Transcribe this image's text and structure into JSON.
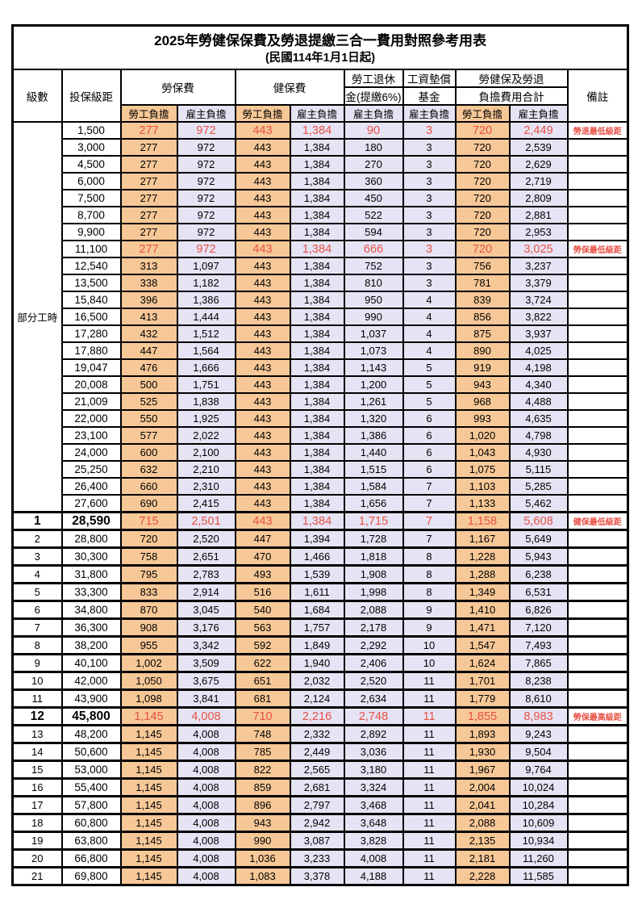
{
  "title": "2025年勞健保保費及勞退提繳三合一費用對照參考用表",
  "subtitle": "(民國114年1月1日起)",
  "colors": {
    "employee_column_bg": "#F7C897",
    "employer_column_bg": "#E6E4F4",
    "highlight_text": "#E85044",
    "border": "#000000"
  },
  "header": {
    "level": "級數",
    "bracket": "投保級距",
    "labor_insurance": "勞保費",
    "health_insurance": "健保費",
    "pension_line1": "勞工退休",
    "pension_line2": "金(提繳6%)",
    "wage_fund_line1": "工資墊償",
    "wage_fund_line2": "基金",
    "total_line1": "勞健保及勞退",
    "total_line2": "負擔費用合計",
    "remark": "備註",
    "employee": "勞工負擔",
    "employer": "雇主負擔"
  },
  "table": {
    "part_time_label": "部分工時",
    "value_columns": [
      "勞保費-勞工負擔",
      "勞保費-雇主負擔",
      "健保費-勞工負擔",
      "健保費-雇主負擔",
      "勞工退休金(提繳6%)-雇主負擔",
      "工資墊償基金-雇主負擔",
      "合計-勞工負擔",
      "合計-雇主負擔"
    ],
    "rows": [
      {
        "lv": null,
        "br": "1,500",
        "v": [
          "277",
          "972",
          "443",
          "1,384",
          "90",
          "3",
          "720",
          "2,449"
        ],
        "rm": "勞退最低級距",
        "hl": true
      },
      {
        "lv": null,
        "br": "3,000",
        "v": [
          "277",
          "972",
          "443",
          "1,384",
          "180",
          "3",
          "720",
          "2,539"
        ],
        "rm": ""
      },
      {
        "lv": null,
        "br": "4,500",
        "v": [
          "277",
          "972",
          "443",
          "1,384",
          "270",
          "3",
          "720",
          "2,629"
        ],
        "rm": ""
      },
      {
        "lv": null,
        "br": "6,000",
        "v": [
          "277",
          "972",
          "443",
          "1,384",
          "360",
          "3",
          "720",
          "2,719"
        ],
        "rm": ""
      },
      {
        "lv": null,
        "br": "7,500",
        "v": [
          "277",
          "972",
          "443",
          "1,384",
          "450",
          "3",
          "720",
          "2,809"
        ],
        "rm": ""
      },
      {
        "lv": null,
        "br": "8,700",
        "v": [
          "277",
          "972",
          "443",
          "1,384",
          "522",
          "3",
          "720",
          "2,881"
        ],
        "rm": ""
      },
      {
        "lv": null,
        "br": "9,900",
        "v": [
          "277",
          "972",
          "443",
          "1,384",
          "594",
          "3",
          "720",
          "2,953"
        ],
        "rm": ""
      },
      {
        "lv": null,
        "br": "11,100",
        "v": [
          "277",
          "972",
          "443",
          "1,384",
          "666",
          "3",
          "720",
          "3,025"
        ],
        "rm": "勞保最低級距",
        "hl": true
      },
      {
        "lv": null,
        "br": "12,540",
        "v": [
          "313",
          "1,097",
          "443",
          "1,384",
          "752",
          "3",
          "756",
          "3,237"
        ],
        "rm": ""
      },
      {
        "lv": null,
        "br": "13,500",
        "v": [
          "338",
          "1,182",
          "443",
          "1,384",
          "810",
          "3",
          "781",
          "3,379"
        ],
        "rm": ""
      },
      {
        "lv": null,
        "br": "15,840",
        "v": [
          "396",
          "1,386",
          "443",
          "1,384",
          "950",
          "4",
          "839",
          "3,724"
        ],
        "rm": ""
      },
      {
        "lv": null,
        "br": "16,500",
        "v": [
          "413",
          "1,444",
          "443",
          "1,384",
          "990",
          "4",
          "856",
          "3,822"
        ],
        "rm": ""
      },
      {
        "lv": null,
        "br": "17,280",
        "v": [
          "432",
          "1,512",
          "443",
          "1,384",
          "1,037",
          "4",
          "875",
          "3,937"
        ],
        "rm": ""
      },
      {
        "lv": null,
        "br": "17,880",
        "v": [
          "447",
          "1,564",
          "443",
          "1,384",
          "1,073",
          "4",
          "890",
          "4,025"
        ],
        "rm": ""
      },
      {
        "lv": null,
        "br": "19,047",
        "v": [
          "476",
          "1,666",
          "443",
          "1,384",
          "1,143",
          "5",
          "919",
          "4,198"
        ],
        "rm": ""
      },
      {
        "lv": null,
        "br": "20,008",
        "v": [
          "500",
          "1,751",
          "443",
          "1,384",
          "1,200",
          "5",
          "943",
          "4,340"
        ],
        "rm": ""
      },
      {
        "lv": null,
        "br": "21,009",
        "v": [
          "525",
          "1,838",
          "443",
          "1,384",
          "1,261",
          "5",
          "968",
          "4,488"
        ],
        "rm": ""
      },
      {
        "lv": null,
        "br": "22,000",
        "v": [
          "550",
          "1,925",
          "443",
          "1,384",
          "1,320",
          "6",
          "993",
          "4,635"
        ],
        "rm": ""
      },
      {
        "lv": null,
        "br": "23,100",
        "v": [
          "577",
          "2,022",
          "443",
          "1,384",
          "1,386",
          "6",
          "1,020",
          "4,798"
        ],
        "rm": ""
      },
      {
        "lv": null,
        "br": "24,000",
        "v": [
          "600",
          "2,100",
          "443",
          "1,384",
          "1,440",
          "6",
          "1,043",
          "4,930"
        ],
        "rm": ""
      },
      {
        "lv": null,
        "br": "25,250",
        "v": [
          "632",
          "2,210",
          "443",
          "1,384",
          "1,515",
          "6",
          "1,075",
          "5,115"
        ],
        "rm": ""
      },
      {
        "lv": null,
        "br": "26,400",
        "v": [
          "660",
          "2,310",
          "443",
          "1,384",
          "1,584",
          "7",
          "1,103",
          "5,285"
        ],
        "rm": ""
      },
      {
        "lv": null,
        "br": "27,600",
        "v": [
          "690",
          "2,415",
          "443",
          "1,384",
          "1,656",
          "7",
          "1,133",
          "5,462"
        ],
        "rm": ""
      },
      {
        "lv": "1",
        "br": "28,590",
        "v": [
          "715",
          "2,501",
          "443",
          "1,384",
          "1,715",
          "7",
          "1,158",
          "5,608"
        ],
        "rm": "健保最低級距",
        "hl": true,
        "bold": true
      },
      {
        "lv": "2",
        "br": "28,800",
        "v": [
          "720",
          "2,520",
          "447",
          "1,394",
          "1,728",
          "7",
          "1,167",
          "5,649"
        ],
        "rm": ""
      },
      {
        "lv": "3",
        "br": "30,300",
        "v": [
          "758",
          "2,651",
          "470",
          "1,466",
          "1,818",
          "8",
          "1,228",
          "5,943"
        ],
        "rm": ""
      },
      {
        "lv": "4",
        "br": "31,800",
        "v": [
          "795",
          "2,783",
          "493",
          "1,539",
          "1,908",
          "8",
          "1,288",
          "6,238"
        ],
        "rm": ""
      },
      {
        "lv": "5",
        "br": "33,300",
        "v": [
          "833",
          "2,914",
          "516",
          "1,611",
          "1,998",
          "8",
          "1,349",
          "6,531"
        ],
        "rm": ""
      },
      {
        "lv": "6",
        "br": "34,800",
        "v": [
          "870",
          "3,045",
          "540",
          "1,684",
          "2,088",
          "9",
          "1,410",
          "6,826"
        ],
        "rm": ""
      },
      {
        "lv": "7",
        "br": "36,300",
        "v": [
          "908",
          "3,176",
          "563",
          "1,757",
          "2,178",
          "9",
          "1,471",
          "7,120"
        ],
        "rm": ""
      },
      {
        "lv": "8",
        "br": "38,200",
        "v": [
          "955",
          "3,342",
          "592",
          "1,849",
          "2,292",
          "10",
          "1,547",
          "7,493"
        ],
        "rm": ""
      },
      {
        "lv": "9",
        "br": "40,100",
        "v": [
          "1,002",
          "3,509",
          "622",
          "1,940",
          "2,406",
          "10",
          "1,624",
          "7,865"
        ],
        "rm": ""
      },
      {
        "lv": "10",
        "br": "42,000",
        "v": [
          "1,050",
          "3,675",
          "651",
          "2,032",
          "2,520",
          "11",
          "1,701",
          "8,238"
        ],
        "rm": ""
      },
      {
        "lv": "11",
        "br": "43,900",
        "v": [
          "1,098",
          "3,841",
          "681",
          "2,124",
          "2,634",
          "11",
          "1,779",
          "8,610"
        ],
        "rm": ""
      },
      {
        "lv": "12",
        "br": "45,800",
        "v": [
          "1,145",
          "4,008",
          "710",
          "2,216",
          "2,748",
          "11",
          "1,855",
          "8,983"
        ],
        "rm": "勞保最高級距",
        "hl": true,
        "bold": true
      },
      {
        "lv": "13",
        "br": "48,200",
        "v": [
          "1,145",
          "4,008",
          "748",
          "2,332",
          "2,892",
          "11",
          "1,893",
          "9,243"
        ],
        "rm": ""
      },
      {
        "lv": "14",
        "br": "50,600",
        "v": [
          "1,145",
          "4,008",
          "785",
          "2,449",
          "3,036",
          "11",
          "1,930",
          "9,504"
        ],
        "rm": ""
      },
      {
        "lv": "15",
        "br": "53,000",
        "v": [
          "1,145",
          "4,008",
          "822",
          "2,565",
          "3,180",
          "11",
          "1,967",
          "9,764"
        ],
        "rm": ""
      },
      {
        "lv": "16",
        "br": "55,400",
        "v": [
          "1,145",
          "4,008",
          "859",
          "2,681",
          "3,324",
          "11",
          "2,004",
          "10,024"
        ],
        "rm": ""
      },
      {
        "lv": "17",
        "br": "57,800",
        "v": [
          "1,145",
          "4,008",
          "896",
          "2,797",
          "3,468",
          "11",
          "2,041",
          "10,284"
        ],
        "rm": ""
      },
      {
        "lv": "18",
        "br": "60,800",
        "v": [
          "1,145",
          "4,008",
          "943",
          "2,942",
          "3,648",
          "11",
          "2,088",
          "10,609"
        ],
        "rm": ""
      },
      {
        "lv": "19",
        "br": "63,800",
        "v": [
          "1,145",
          "4,008",
          "990",
          "3,087",
          "3,828",
          "11",
          "2,135",
          "10,934"
        ],
        "rm": ""
      },
      {
        "lv": "20",
        "br": "66,800",
        "v": [
          "1,145",
          "4,008",
          "1,036",
          "3,233",
          "4,008",
          "11",
          "2,181",
          "11,260"
        ],
        "rm": ""
      },
      {
        "lv": "21",
        "br": "69,800",
        "v": [
          "1,145",
          "4,008",
          "1,083",
          "3,378",
          "4,188",
          "11",
          "2,228",
          "11,585"
        ],
        "rm": ""
      }
    ]
  }
}
